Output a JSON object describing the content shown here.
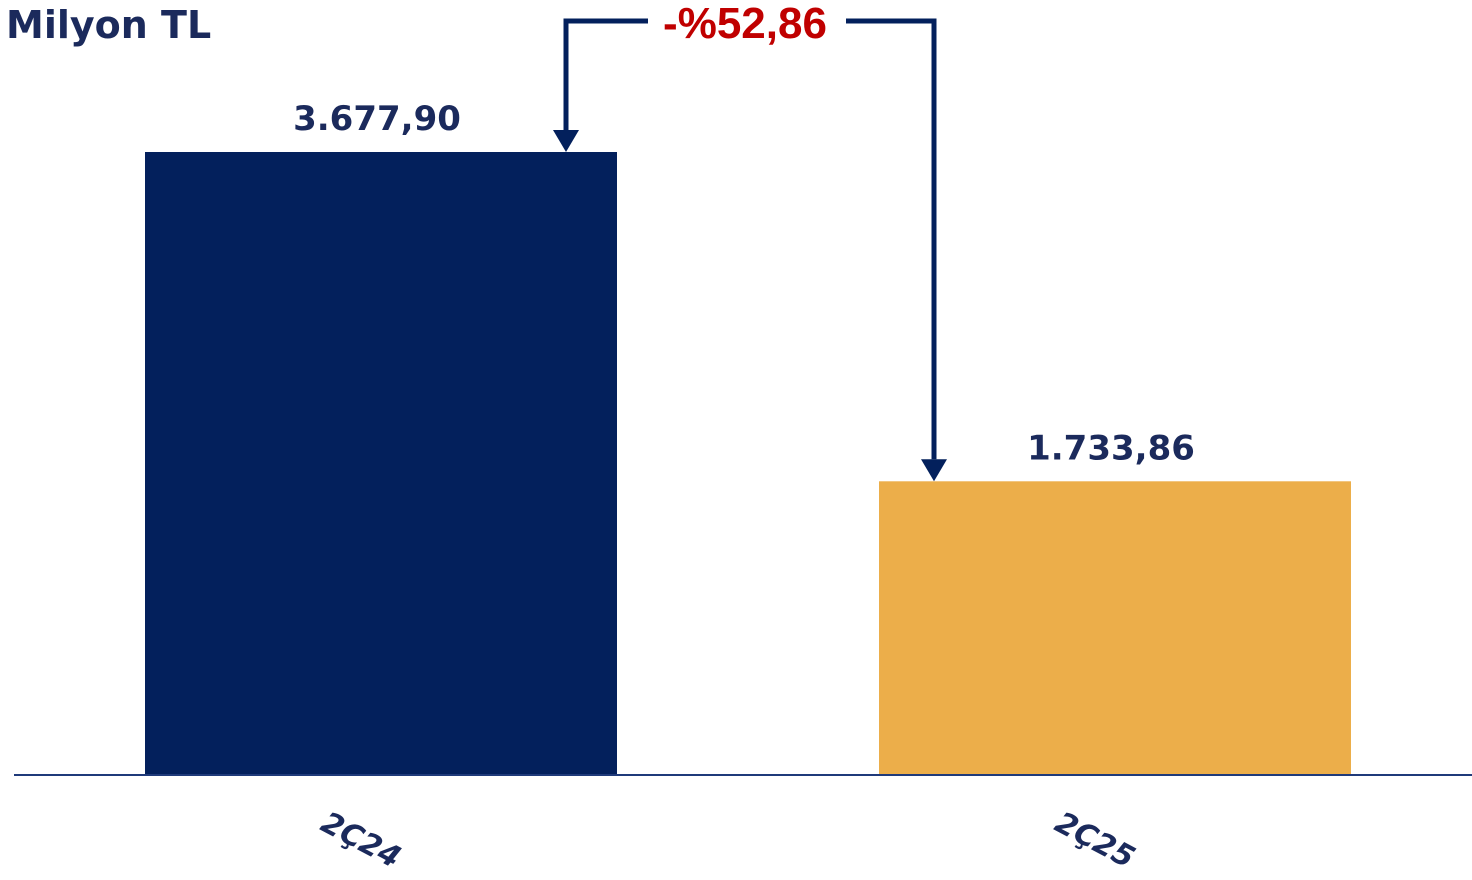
{
  "chart_data": {
    "type": "bar",
    "unit_label": "Milyon TL",
    "categories": [
      "2Ç24",
      "2Ç25"
    ],
    "values": [
      3677.9,
      1733.86
    ],
    "value_labels": [
      "3.677,90",
      "1.733,86"
    ],
    "colors": [
      "#03205c",
      "#ecae4a"
    ],
    "change_label": "-%52,86",
    "change_color": "#c00000",
    "arrow_color": "#03205c",
    "text_color": "#1b2a5c",
    "ylim": [
      0,
      3677.9
    ],
    "grid": false,
    "legend": "none",
    "title": "",
    "xlabel": "",
    "ylabel": ""
  }
}
